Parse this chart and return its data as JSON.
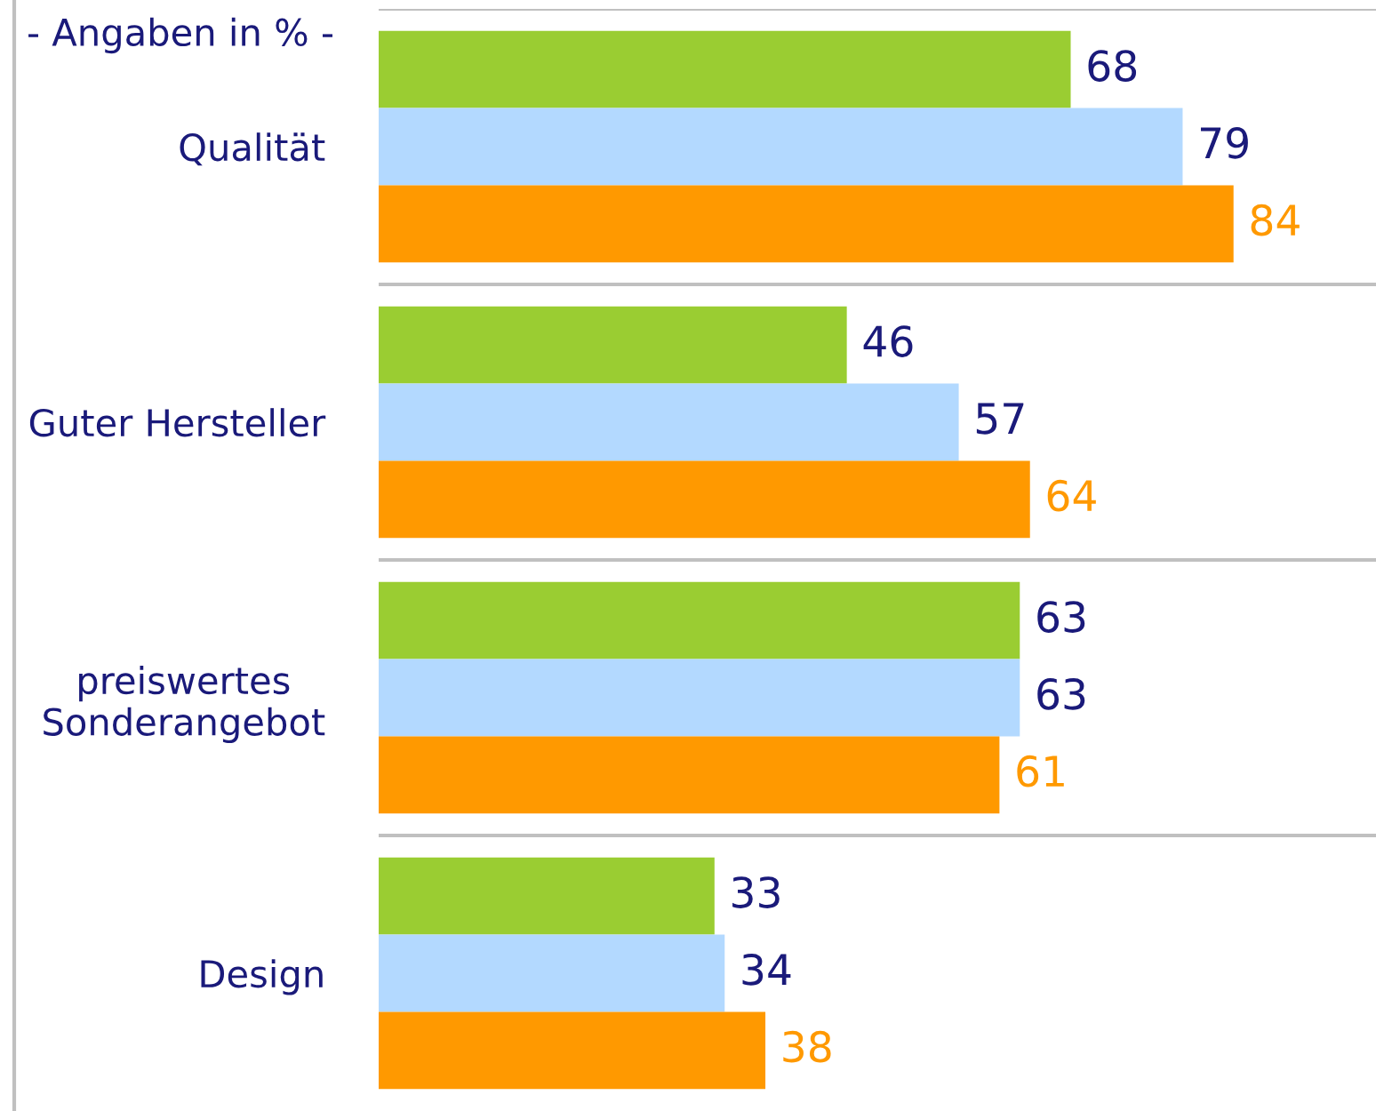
{
  "chart_data": {
    "type": "bar",
    "orientation": "horizontal",
    "annotations": [
      "- Angaben in % -"
    ],
    "categories": [
      "Qualität",
      "Guter Hersteller",
      "preiswertes\nSonderangebot",
      "Design"
    ],
    "series": [
      {
        "color": "#9acd32",
        "values": [
          68,
          46,
          63,
          33
        ]
      },
      {
        "color": "#b3d9ff",
        "values": [
          79,
          57,
          63,
          34
        ]
      },
      {
        "color": "#ff9900",
        "values": [
          84,
          64,
          61,
          38
        ]
      }
    ],
    "xlim": [
      0,
      98
    ],
    "tick_labels": "y",
    "data_labels": true,
    "legend": false
  }
}
